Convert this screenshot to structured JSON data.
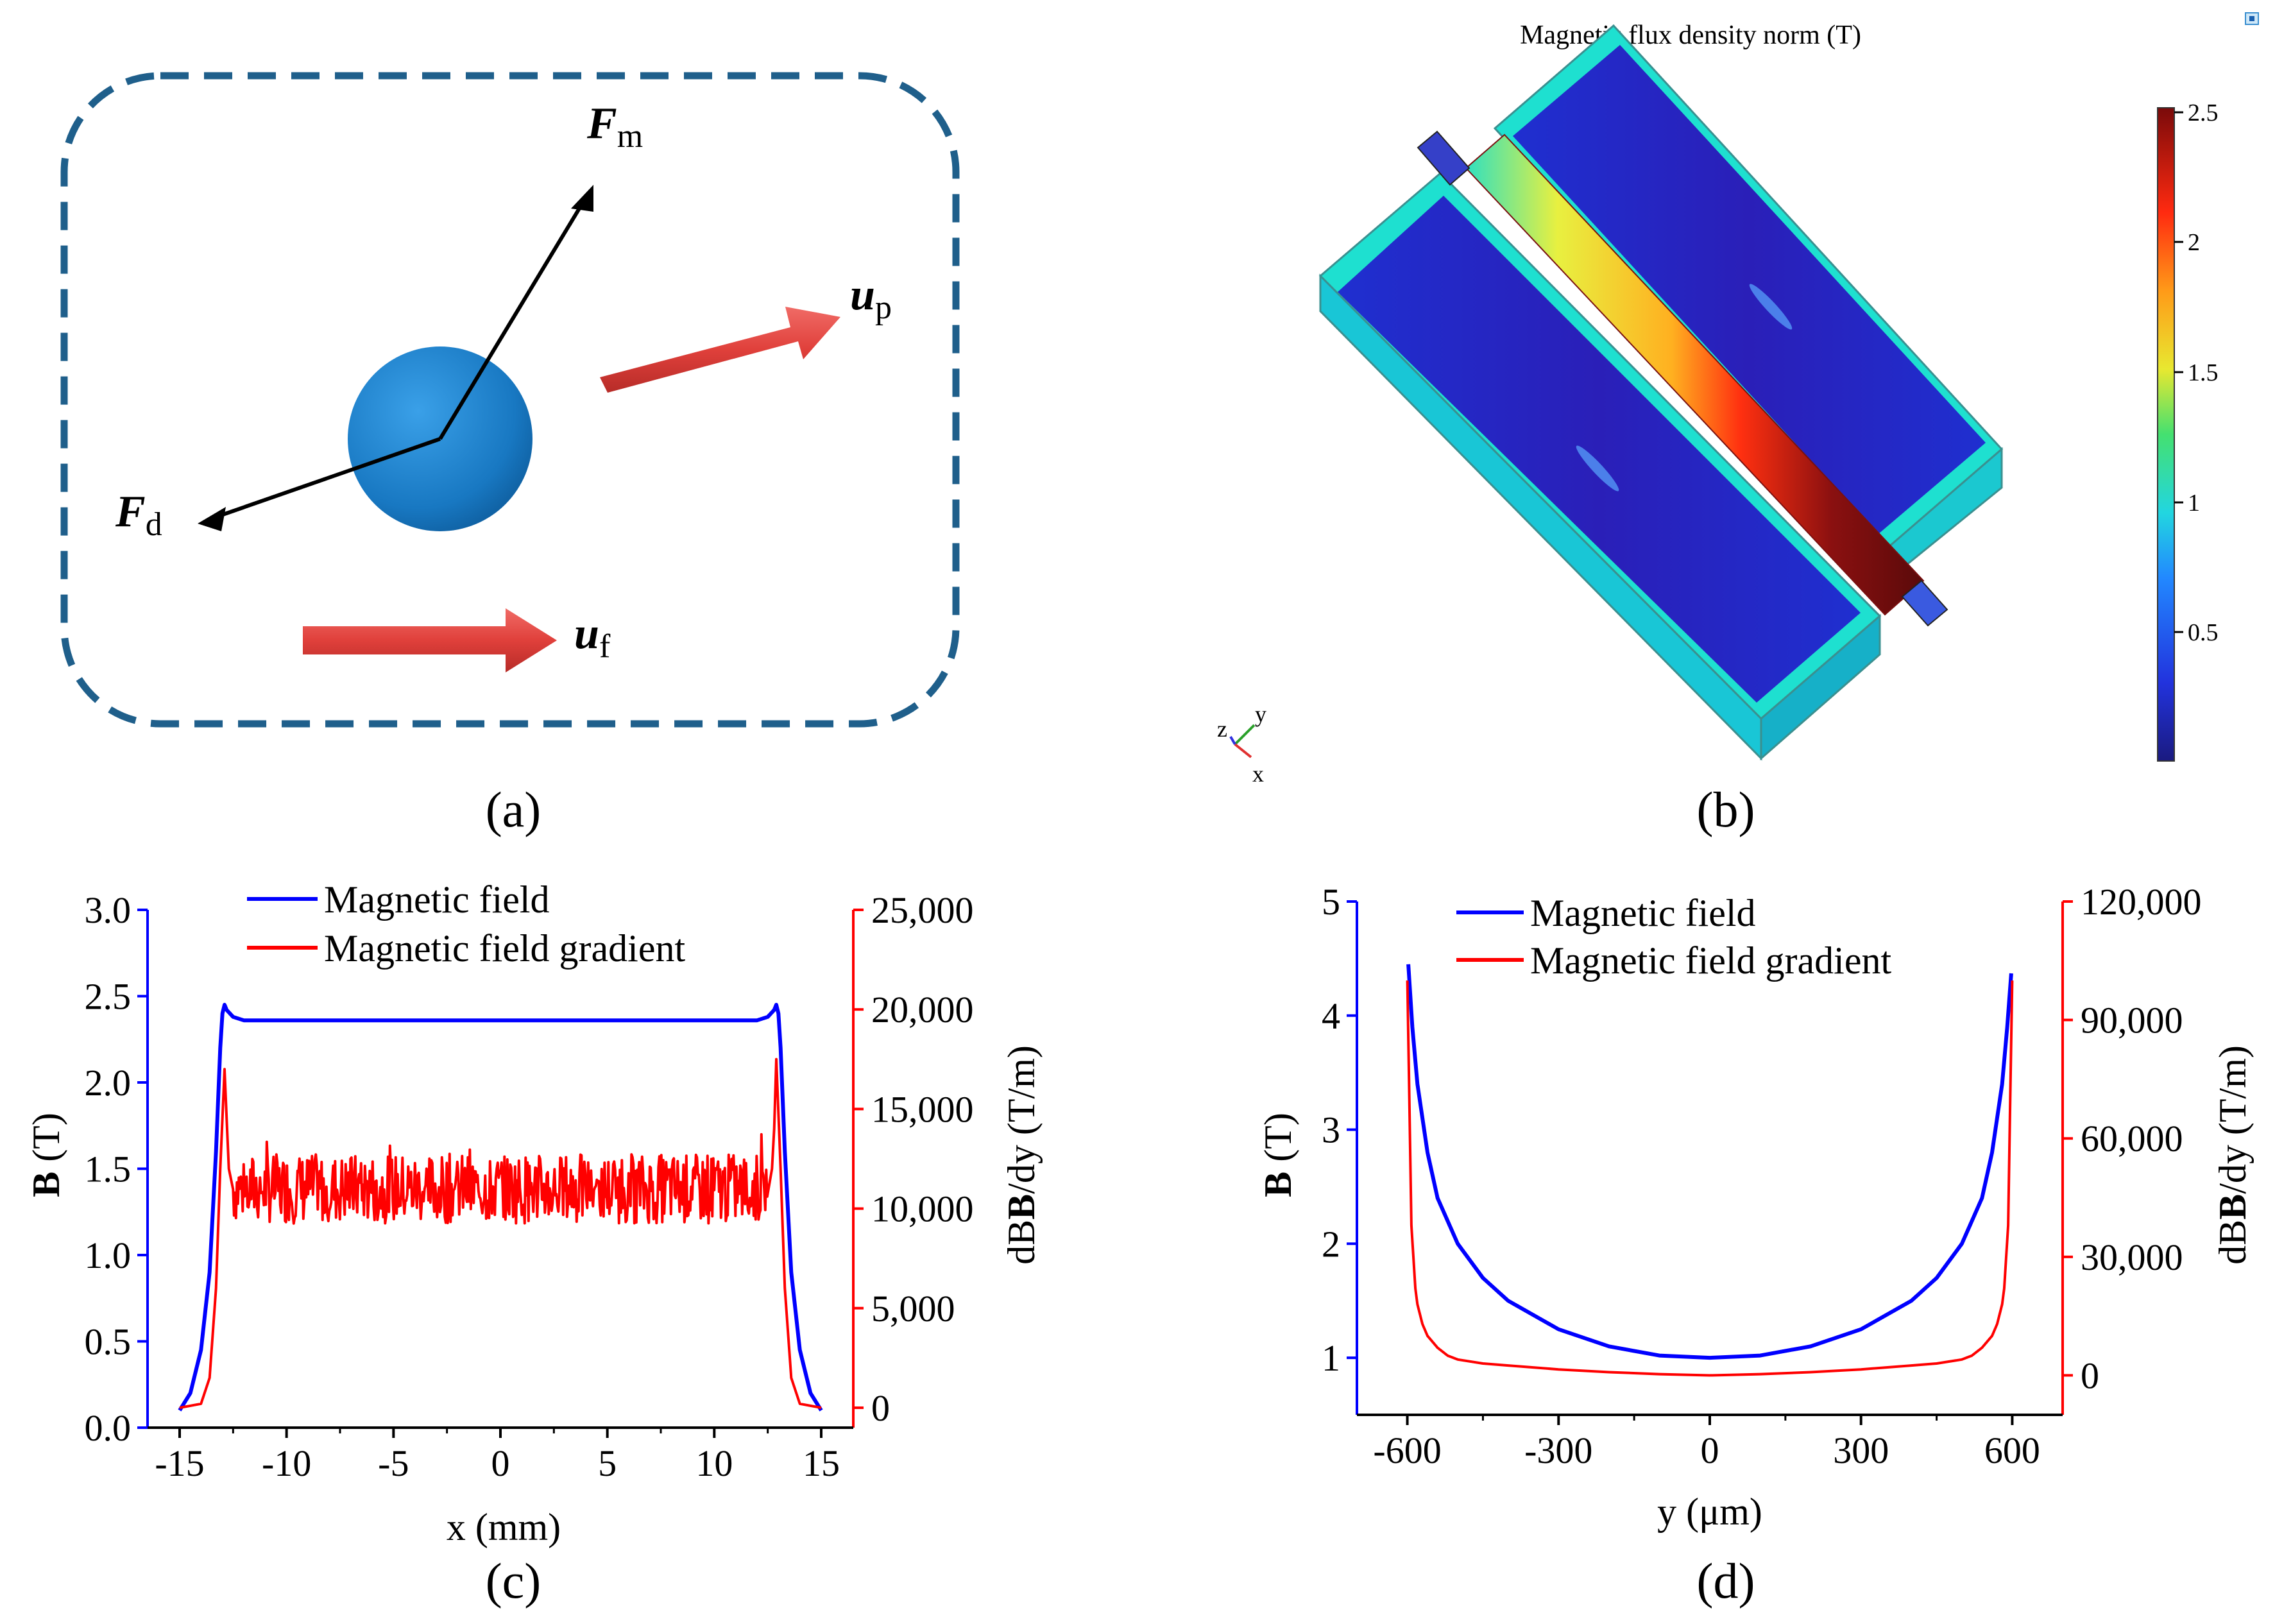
{
  "panel_a": {
    "caption": "(a)",
    "labels": {
      "fm_main": "F",
      "fm_sub": "m",
      "fd_main": "F",
      "fd_sub": "d",
      "up_main": "u",
      "up_sub": "p",
      "uf_main": "u",
      "uf_sub": "f"
    },
    "colors": {
      "border": "#1f5f8b",
      "particle": "#1b7fc7",
      "arrow_red": "#e04a45",
      "arrow_black": "#000000"
    }
  },
  "panel_b": {
    "caption": "(b)",
    "title": "Magnetic flux density norm (T)",
    "colorbar_ticks": [
      "2.5",
      "2",
      "1.5",
      "1",
      "0.5"
    ],
    "axis_triad": {
      "z": "z",
      "y": "y",
      "x": "x"
    }
  },
  "chart_data": [
    {
      "id": "c",
      "caption": "(c)",
      "type": "line",
      "xlabel": "x (mm)",
      "ylabel_left_main": "B",
      "ylabel_left_rest": " (T)",
      "ylabel_right_pre": "dB",
      "ylabel_right_post": "/dy (T/m)",
      "xlim": [
        -16.5,
        16.5
      ],
      "ylim_left": [
        0,
        3.0
      ],
      "ylim_right": [
        -1000,
        25000
      ],
      "xticks": [
        -15,
        -10,
        -5,
        0,
        5,
        10,
        15
      ],
      "xtick_labels": [
        "-15",
        "-10",
        "-5",
        "0",
        "5",
        "10",
        "15"
      ],
      "yticks_left": [
        0.0,
        0.5,
        1.0,
        1.5,
        2.0,
        2.5,
        3.0
      ],
      "ytick_labels_left": [
        "0.0",
        "0.5",
        "1.0",
        "1.5",
        "2.0",
        "2.5",
        "3.0"
      ],
      "yticks_right": [
        0,
        5000,
        10000,
        15000,
        20000,
        25000
      ],
      "ytick_labels_right": [
        "0",
        "5,000",
        "10,000",
        "15,000",
        "20,000",
        "25,000"
      ],
      "legend": [
        "Magnetic field",
        "Magnetic field gradient"
      ],
      "series": [
        {
          "name": "Magnetic field",
          "axis": "left",
          "color": "#0000ff",
          "x": [
            -15,
            -14.5,
            -14,
            -13.6,
            -13.3,
            -13.1,
            -13.0,
            -12.9,
            -12.8,
            -12.5,
            -12,
            -10,
            -5,
            0,
            5,
            10,
            12,
            12.5,
            12.8,
            12.9,
            13.0,
            13.1,
            13.3,
            13.6,
            14,
            14.5,
            15
          ],
          "y": [
            0.1,
            0.2,
            0.45,
            0.9,
            1.6,
            2.2,
            2.4,
            2.45,
            2.42,
            2.38,
            2.36,
            2.36,
            2.36,
            2.36,
            2.36,
            2.36,
            2.36,
            2.38,
            2.42,
            2.45,
            2.4,
            2.2,
            1.6,
            0.9,
            0.45,
            0.2,
            0.1
          ]
        },
        {
          "name": "Magnetic field gradient",
          "axis": "right",
          "color": "#ff0000",
          "x": [
            -15,
            -14,
            -13.6,
            -13.3,
            -13.1,
            -12.9,
            -12.8,
            -12.7,
            -12.5,
            -12,
            0,
            12,
            12.5,
            12.7,
            12.8,
            12.9,
            13.1,
            13.3,
            13.6,
            14,
            15
          ],
          "y": [
            0,
            200,
            1500,
            6000,
            12000,
            17000,
            14500,
            12000,
            11000,
            10500,
            10500,
            10500,
            11000,
            12000,
            14000,
            17500,
            12000,
            6000,
            1500,
            200,
            0
          ],
          "noise_band": {
            "x_from": -12.5,
            "x_to": 12.5,
            "low": 8500,
            "high": 13500
          }
        }
      ]
    },
    {
      "id": "d",
      "caption": "(d)",
      "type": "line",
      "xlabel": "y (μm)",
      "ylabel_left_main": "B",
      "ylabel_left_rest": " (T)",
      "ylabel_right_pre": "dB",
      "ylabel_right_post": "/dy (T/m)",
      "xlim": [
        -700,
        700
      ],
      "ylim_left": [
        0.5,
        5
      ],
      "ylim_right": [
        -10000,
        120000
      ],
      "xticks": [
        -600,
        -300,
        0,
        300,
        600
      ],
      "xtick_labels": [
        "-600",
        "-300",
        "0",
        "300",
        "600"
      ],
      "yticks_left": [
        1,
        2,
        3,
        4,
        5
      ],
      "ytick_labels_left": [
        "1",
        "2",
        "3",
        "4",
        "5"
      ],
      "yticks_right": [
        0,
        30000,
        60000,
        90000,
        120000
      ],
      "ytick_labels_right": [
        "0",
        "30,000",
        "60,000",
        "90,000",
        "120,000"
      ],
      "legend": [
        "Magnetic field",
        "Magnetic field gradient"
      ],
      "series": [
        {
          "name": "Magnetic field",
          "axis": "left",
          "color": "#0000ff",
          "x": [
            -598,
            -590,
            -580,
            -560,
            -540,
            -500,
            -450,
            -400,
            -300,
            -200,
            -100,
            0,
            100,
            200,
            300,
            400,
            450,
            500,
            540,
            560,
            580,
            590,
            598
          ],
          "y": [
            4.45,
            3.9,
            3.4,
            2.8,
            2.4,
            2.0,
            1.7,
            1.5,
            1.25,
            1.1,
            1.02,
            1.0,
            1.02,
            1.1,
            1.25,
            1.5,
            1.7,
            2.0,
            2.4,
            2.8,
            3.4,
            3.9,
            4.37
          ]
        },
        {
          "name": "Magnetic field gradient",
          "axis": "right",
          "color": "#ff0000",
          "x": [
            -600,
            -596,
            -592,
            -588,
            -584,
            -580,
            -570,
            -560,
            -540,
            -520,
            -500,
            -450,
            -400,
            -300,
            -200,
            -100,
            0,
            100,
            200,
            300,
            400,
            450,
            500,
            520,
            540,
            560,
            570,
            580,
            584,
            588,
            592,
            596,
            600
          ],
          "y": [
            100000,
            70000,
            38000,
            30000,
            22000,
            18000,
            13000,
            10000,
            7000,
            5000,
            4000,
            3000,
            2500,
            1500,
            800,
            300,
            0,
            300,
            800,
            1500,
            2500,
            3000,
            4000,
            5000,
            7000,
            10000,
            13000,
            18000,
            22000,
            30000,
            38000,
            70000,
            100000
          ]
        }
      ]
    }
  ]
}
